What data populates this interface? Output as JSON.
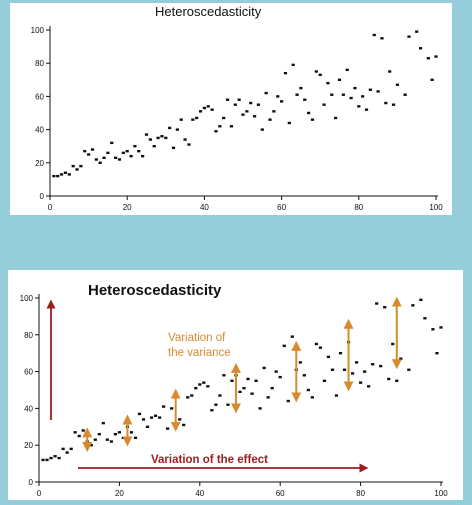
{
  "chart_data": [
    {
      "type": "scatter",
      "title": "Heteroscedasticity",
      "xlabel": "",
      "ylabel": "",
      "xlim": [
        0,
        100
      ],
      "ylim": [
        0,
        100
      ],
      "xticks": [
        0,
        20,
        40,
        60,
        80,
        100
      ],
      "yticks": [
        0,
        20,
        40,
        60,
        80,
        100
      ],
      "grid": false,
      "points": [
        [
          1,
          12
        ],
        [
          2,
          12
        ],
        [
          3,
          13
        ],
        [
          4,
          14
        ],
        [
          5,
          13
        ],
        [
          6,
          18
        ],
        [
          7,
          16
        ],
        [
          8,
          18
        ],
        [
          9,
          27
        ],
        [
          10,
          25
        ],
        [
          11,
          28
        ],
        [
          12,
          22
        ],
        [
          13,
          20
        ],
        [
          14,
          23
        ],
        [
          15,
          26
        ],
        [
          16,
          32
        ],
        [
          17,
          23
        ],
        [
          18,
          22
        ],
        [
          19,
          26
        ],
        [
          20,
          27
        ],
        [
          21,
          24
        ],
        [
          22,
          30
        ],
        [
          23,
          27
        ],
        [
          24,
          24
        ],
        [
          25,
          37
        ],
        [
          26,
          34
        ],
        [
          27,
          30
        ],
        [
          28,
          35
        ],
        [
          29,
          36
        ],
        [
          30,
          35
        ],
        [
          31,
          41
        ],
        [
          32,
          29
        ],
        [
          33,
          40
        ],
        [
          34,
          46
        ],
        [
          35,
          34
        ],
        [
          36,
          31
        ],
        [
          37,
          46
        ],
        [
          38,
          47
        ],
        [
          39,
          51
        ],
        [
          40,
          53
        ],
        [
          41,
          54
        ],
        [
          42,
          52
        ],
        [
          43,
          39
        ],
        [
          44,
          42
        ],
        [
          45,
          47
        ],
        [
          46,
          58
        ],
        [
          47,
          42
        ],
        [
          48,
          55
        ],
        [
          49,
          58
        ],
        [
          50,
          49
        ],
        [
          51,
          51
        ],
        [
          52,
          56
        ],
        [
          53,
          48
        ],
        [
          54,
          55
        ],
        [
          55,
          40
        ],
        [
          56,
          62
        ],
        [
          57,
          46
        ],
        [
          58,
          51
        ],
        [
          59,
          60
        ],
        [
          60,
          57
        ],
        [
          61,
          74
        ],
        [
          62,
          44
        ],
        [
          63,
          79
        ],
        [
          64,
          61
        ],
        [
          65,
          65
        ],
        [
          66,
          58
        ],
        [
          67,
          50
        ],
        [
          68,
          46
        ],
        [
          69,
          75
        ],
        [
          70,
          73
        ],
        [
          71,
          55
        ],
        [
          72,
          68
        ],
        [
          73,
          61
        ],
        [
          74,
          47
        ],
        [
          75,
          70
        ],
        [
          76,
          61
        ],
        [
          77,
          76
        ],
        [
          78,
          59
        ],
        [
          79,
          65
        ],
        [
          80,
          54
        ],
        [
          81,
          60
        ],
        [
          82,
          52
        ],
        [
          83,
          64
        ],
        [
          84,
          97
        ],
        [
          85,
          63
        ],
        [
          86,
          95
        ],
        [
          87,
          56
        ],
        [
          88,
          75
        ],
        [
          89,
          55
        ],
        [
          90,
          67
        ],
        [
          92,
          61
        ],
        [
          93,
          96
        ],
        [
          95,
          99
        ],
        [
          96,
          89
        ],
        [
          98,
          83
        ],
        [
          99,
          70
        ],
        [
          100,
          84
        ]
      ]
    },
    {
      "type": "scatter",
      "title": "Heteroscedasticity",
      "xlabel": "",
      "ylabel": "",
      "xlim": [
        0,
        100
      ],
      "ylim": [
        0,
        100
      ],
      "xticks": [
        0,
        20,
        40,
        60,
        80,
        100
      ],
      "yticks": [
        0,
        20,
        40,
        60,
        80,
        100
      ],
      "grid": false,
      "points": [
        [
          1,
          12
        ],
        [
          2,
          12
        ],
        [
          3,
          13
        ],
        [
          4,
          14
        ],
        [
          5,
          13
        ],
        [
          6,
          18
        ],
        [
          7,
          16
        ],
        [
          8,
          18
        ],
        [
          9,
          27
        ],
        [
          10,
          25
        ],
        [
          11,
          28
        ],
        [
          12,
          22
        ],
        [
          13,
          20
        ],
        [
          14,
          23
        ],
        [
          15,
          26
        ],
        [
          16,
          32
        ],
        [
          17,
          23
        ],
        [
          18,
          22
        ],
        [
          19,
          26
        ],
        [
          20,
          27
        ],
        [
          21,
          24
        ],
        [
          22,
          30
        ],
        [
          23,
          27
        ],
        [
          24,
          24
        ],
        [
          25,
          37
        ],
        [
          26,
          34
        ],
        [
          27,
          30
        ],
        [
          28,
          35
        ],
        [
          29,
          36
        ],
        [
          30,
          35
        ],
        [
          31,
          41
        ],
        [
          32,
          29
        ],
        [
          33,
          40
        ],
        [
          34,
          46
        ],
        [
          35,
          34
        ],
        [
          36,
          31
        ],
        [
          37,
          46
        ],
        [
          38,
          47
        ],
        [
          39,
          51
        ],
        [
          40,
          53
        ],
        [
          41,
          54
        ],
        [
          42,
          52
        ],
        [
          43,
          39
        ],
        [
          44,
          42
        ],
        [
          45,
          47
        ],
        [
          46,
          58
        ],
        [
          47,
          42
        ],
        [
          48,
          55
        ],
        [
          49,
          58
        ],
        [
          50,
          49
        ],
        [
          51,
          51
        ],
        [
          52,
          56
        ],
        [
          53,
          48
        ],
        [
          54,
          55
        ],
        [
          55,
          40
        ],
        [
          56,
          62
        ],
        [
          57,
          46
        ],
        [
          58,
          51
        ],
        [
          59,
          60
        ],
        [
          60,
          57
        ],
        [
          61,
          74
        ],
        [
          62,
          44
        ],
        [
          63,
          79
        ],
        [
          64,
          61
        ],
        [
          65,
          65
        ],
        [
          66,
          58
        ],
        [
          67,
          50
        ],
        [
          68,
          46
        ],
        [
          69,
          75
        ],
        [
          70,
          73
        ],
        [
          71,
          55
        ],
        [
          72,
          68
        ],
        [
          73,
          61
        ],
        [
          74,
          47
        ],
        [
          75,
          70
        ],
        [
          76,
          61
        ],
        [
          77,
          76
        ],
        [
          78,
          59
        ],
        [
          79,
          65
        ],
        [
          80,
          54
        ],
        [
          81,
          60
        ],
        [
          82,
          52
        ],
        [
          83,
          64
        ],
        [
          84,
          97
        ],
        [
          85,
          63
        ],
        [
          86,
          95
        ],
        [
          87,
          56
        ],
        [
          88,
          75
        ],
        [
          89,
          55
        ],
        [
          90,
          67
        ],
        [
          92,
          61
        ],
        [
          93,
          96
        ],
        [
          95,
          99
        ],
        [
          96,
          89
        ],
        [
          98,
          83
        ],
        [
          99,
          70
        ],
        [
          100,
          84
        ]
      ],
      "annotations": {
        "variance_label_line1": "Variation of",
        "variance_label_line2": "the variance",
        "effect_label": "Variation of the effect",
        "variance_arrows": [
          {
            "x": 12,
            "y1": 19,
            "y2": 27
          },
          {
            "x": 22,
            "y1": 22,
            "y2": 34
          },
          {
            "x": 34,
            "y1": 30,
            "y2": 48
          },
          {
            "x": 49,
            "y1": 40,
            "y2": 62
          },
          {
            "x": 64,
            "y1": 46,
            "y2": 74
          },
          {
            "x": 77,
            "y1": 52,
            "y2": 86
          },
          {
            "x": 89,
            "y1": 64,
            "y2": 98
          }
        ],
        "variance_color": "#d88a2e",
        "effect_color": "#9b1e1e"
      }
    }
  ]
}
